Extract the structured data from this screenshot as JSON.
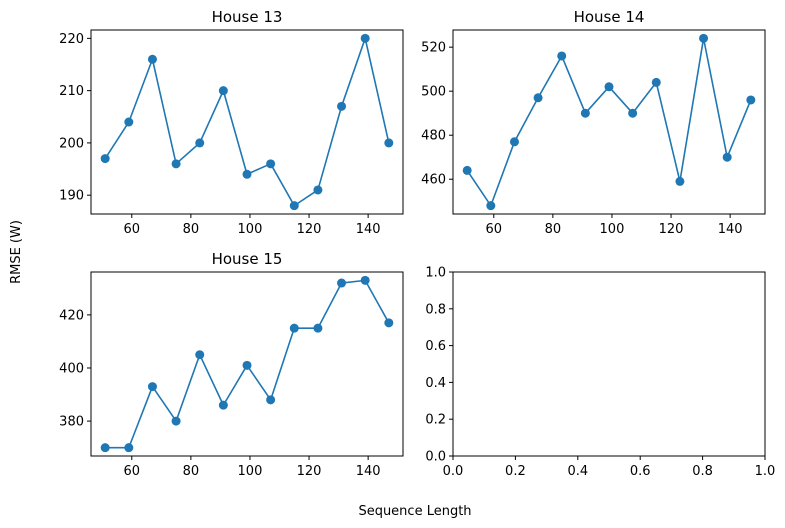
{
  "figure": {
    "xlabel": "Sequence Length",
    "ylabel": "RMSE (W)"
  },
  "colors": {
    "series": "#1f77b4"
  },
  "chart_data": [
    {
      "type": "line",
      "title": "House 13",
      "xlabel": "",
      "ylabel": "",
      "x": [
        51,
        59,
        67,
        75,
        83,
        91,
        99,
        107,
        115,
        123,
        131,
        139,
        147
      ],
      "y": [
        197,
        204,
        216,
        196,
        200,
        210,
        194,
        196,
        188,
        191,
        207,
        220,
        200
      ],
      "xlim": [
        46.2,
        151.8
      ],
      "ylim": [
        186.4,
        221.6
      ],
      "xticks": [
        60,
        80,
        100,
        120,
        140
      ],
      "yticks": [
        190,
        200,
        210,
        220
      ],
      "xticklabels": [
        "60",
        "80",
        "100",
        "120",
        "140"
      ],
      "yticklabels": [
        "190",
        "200",
        "210",
        "220"
      ],
      "markers": "circle",
      "grid": false
    },
    {
      "type": "line",
      "title": "House 14",
      "xlabel": "",
      "ylabel": "",
      "x": [
        51,
        59,
        67,
        75,
        83,
        91,
        99,
        107,
        115,
        123,
        131,
        139,
        147
      ],
      "y": [
        464,
        448,
        477,
        497,
        516,
        490,
        502,
        490,
        504,
        459,
        524,
        470,
        496
      ],
      "xlim": [
        46.2,
        151.8
      ],
      "ylim": [
        444.2,
        527.8
      ],
      "xticks": [
        60,
        80,
        100,
        120,
        140
      ],
      "yticks": [
        460,
        480,
        500,
        520
      ],
      "xticklabels": [
        "60",
        "80",
        "100",
        "120",
        "140"
      ],
      "yticklabels": [
        "460",
        "480",
        "500",
        "520"
      ],
      "markers": "circle",
      "grid": false
    },
    {
      "type": "line",
      "title": "House 15",
      "xlabel": "",
      "ylabel": "",
      "x": [
        51,
        59,
        67,
        75,
        83,
        91,
        99,
        107,
        115,
        123,
        131,
        139,
        147
      ],
      "y": [
        370,
        370,
        393,
        380,
        405,
        386,
        401,
        388,
        415,
        415,
        432,
        433,
        417
      ],
      "xlim": [
        46.2,
        151.8
      ],
      "ylim": [
        366.85,
        436.15
      ],
      "xticks": [
        60,
        80,
        100,
        120,
        140
      ],
      "yticks": [
        380,
        400,
        420
      ],
      "xticklabels": [
        "60",
        "80",
        "100",
        "120",
        "140"
      ],
      "yticklabels": [
        "380",
        "400",
        "420"
      ],
      "markers": "circle",
      "grid": false
    },
    {
      "type": "line",
      "title": "",
      "xlabel": "",
      "ylabel": "",
      "x": [],
      "y": [],
      "xlim": [
        0,
        1
      ],
      "ylim": [
        0,
        1
      ],
      "xticks": [
        0,
        0.2,
        0.4,
        0.6,
        0.8,
        1.0
      ],
      "yticks": [
        0,
        0.2,
        0.4,
        0.6,
        0.8,
        1.0
      ],
      "xticklabels": [
        "0.0",
        "0.2",
        "0.4",
        "0.6",
        "0.8",
        "1.0"
      ],
      "yticklabels": [
        "0.0",
        "0.2",
        "0.4",
        "0.6",
        "0.8",
        "1.0"
      ],
      "markers": "circle",
      "grid": false
    }
  ]
}
